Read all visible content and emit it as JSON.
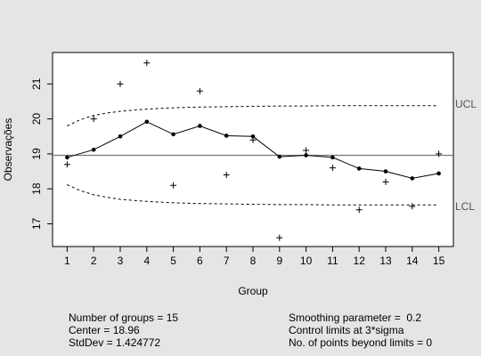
{
  "chart_data": {
    "type": "line",
    "xlabel": "Group",
    "ylabel": "Observações",
    "xlim": [
      0.45,
      15.55
    ],
    "ylim": [
      16.35,
      21.9
    ],
    "x_ticks": [
      1,
      2,
      3,
      4,
      5,
      6,
      7,
      8,
      9,
      10,
      11,
      12,
      13,
      14,
      15
    ],
    "y_ticks": [
      17,
      18,
      19,
      20,
      21
    ],
    "center": 18.96,
    "center_line_color": "#777777",
    "series": [
      {
        "type": "scatter",
        "marker": "+",
        "x": [
          1,
          2,
          3,
          4,
          5,
          6,
          7,
          8,
          9,
          10,
          11,
          12,
          13,
          14,
          15
        ],
        "values": [
          18.7,
          20.0,
          21.0,
          21.6,
          18.1,
          20.8,
          18.4,
          19.4,
          16.6,
          19.1,
          18.6,
          17.4,
          18.2,
          17.5,
          19.0
        ]
      },
      {
        "type": "line",
        "marker": "dot",
        "x": [
          1,
          2,
          3,
          4,
          5,
          6,
          7,
          8,
          9,
          10,
          11,
          12,
          13,
          14,
          15
        ],
        "values": [
          18.9,
          19.12,
          19.5,
          19.92,
          19.56,
          19.8,
          19.52,
          19.5,
          18.92,
          18.96,
          18.9,
          18.58,
          18.5,
          18.3,
          18.44
        ]
      },
      {
        "type": "line",
        "style": "dashed",
        "label": "UCL",
        "x": [
          1,
          1.5,
          2,
          2.5,
          3,
          3.5,
          4,
          4.5,
          5,
          6,
          7,
          8,
          9,
          10,
          11,
          12,
          13,
          14,
          15
        ],
        "values": [
          19.8,
          19.98,
          20.1,
          20.17,
          20.22,
          20.25,
          20.28,
          20.3,
          20.32,
          20.34,
          20.35,
          20.36,
          20.37,
          20.37,
          20.38,
          20.38,
          20.38,
          20.38,
          20.38
        ]
      },
      {
        "type": "line",
        "style": "dashed",
        "label": "LCL",
        "x": [
          1,
          1.5,
          2,
          2.5,
          3,
          3.5,
          4,
          4.5,
          5,
          6,
          7,
          8,
          9,
          10,
          11,
          12,
          13,
          14,
          15
        ],
        "values": [
          18.12,
          17.95,
          17.83,
          17.76,
          17.7,
          17.67,
          17.64,
          17.62,
          17.6,
          17.58,
          17.57,
          17.56,
          17.55,
          17.55,
          17.54,
          17.54,
          17.54,
          17.54,
          17.54
        ]
      }
    ],
    "labels": {
      "ucl": "UCL",
      "lcl": "LCL"
    },
    "stats_left": [
      "Number of groups = 15",
      "Center = 18.96",
      "StdDev = 1.424772"
    ],
    "stats_right": [
      "Smoothing parameter =  0.2",
      "Control limits at 3*sigma",
      "No. of points beyond limits = 0"
    ]
  }
}
